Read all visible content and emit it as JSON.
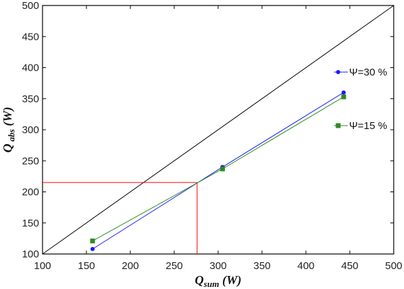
{
  "chart_data": {
    "type": "line",
    "x_range": [
      100,
      500
    ],
    "y_range": [
      100,
      500
    ],
    "x_ticks": [
      100,
      150,
      200,
      250,
      300,
      350,
      400,
      450,
      500
    ],
    "y_ticks": [
      100,
      150,
      200,
      250,
      300,
      350,
      400,
      450,
      500
    ],
    "xlabel": {
      "main": "Q",
      "sub": "sum",
      "unit": " (W)"
    },
    "ylabel": {
      "main": "Q",
      "sub": " abs",
      "unit": " (W)"
    },
    "grid": false,
    "legend_position": "right",
    "series": [
      {
        "name": "Ψ=30 %",
        "color": "#1a1aff",
        "marker": "circle",
        "points": [
          [
            157,
            108
          ],
          [
            305,
            240
          ],
          [
            443,
            360
          ]
        ]
      },
      {
        "name": "Ψ=15 %",
        "color": "#2e8b22",
        "marker": "square",
        "points": [
          [
            157,
            121
          ],
          [
            305,
            237
          ],
          [
            443,
            353
          ]
        ]
      }
    ],
    "reference_lines": [
      {
        "type": "diagonal",
        "from": [
          100,
          100
        ],
        "to": [
          500,
          500
        ],
        "color": "#000000"
      },
      {
        "type": "horizontal",
        "y": 215,
        "x_from": 100,
        "x_to": 276,
        "color": "#ff0000"
      },
      {
        "type": "vertical",
        "x": 276,
        "y_from": 100,
        "y_to": 215,
        "color": "#ff0000"
      }
    ]
  }
}
